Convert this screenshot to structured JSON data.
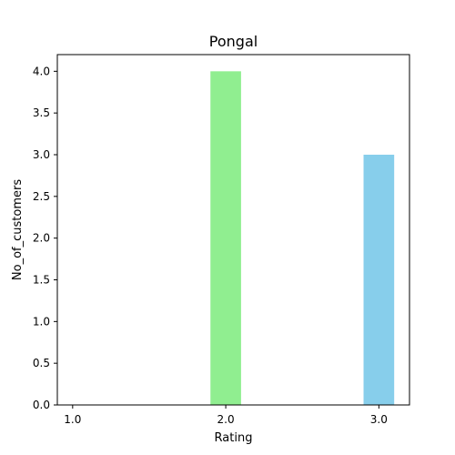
{
  "chart_data": {
    "type": "bar",
    "title": "Pongal",
    "xlabel": "Rating",
    "ylabel": "No_of_customers",
    "x": [
      1.0,
      2.0,
      3.0
    ],
    "x_tick_labels": [
      "1.0",
      "2.0",
      "3.0"
    ],
    "xlim": [
      0.9,
      3.2
    ],
    "bars": [
      {
        "x": 2.0,
        "value": 4,
        "color": "#90ee90"
      },
      {
        "x": 3.0,
        "value": 3,
        "color": "#87ceeb"
      }
    ],
    "bar_width": 0.2,
    "ylim": [
      0,
      4.2
    ],
    "y_ticks": [
      0.0,
      0.5,
      1.0,
      1.5,
      2.0,
      2.5,
      3.0,
      3.5,
      4.0
    ],
    "y_tick_labels": [
      "0.0",
      "0.5",
      "1.0",
      "1.5",
      "2.0",
      "2.5",
      "3.0",
      "3.5",
      "4.0"
    ],
    "grid": false,
    "legend": "none"
  }
}
